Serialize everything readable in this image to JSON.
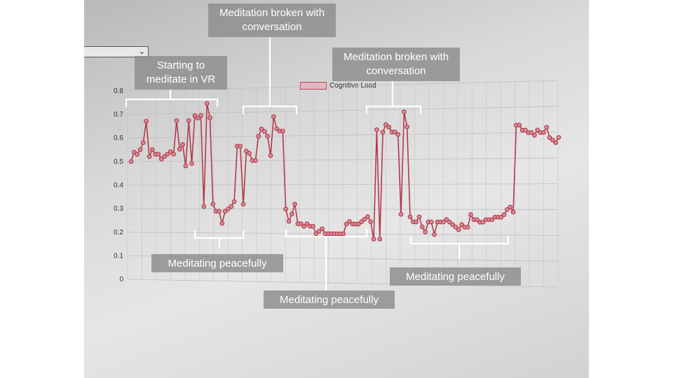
{
  "annotations": {
    "start": "Starting to meditate in VR",
    "broken1": "Meditation broken with conversation",
    "broken2": "Meditation broken with conversation",
    "peace1": "Meditating peacefully",
    "peace2": "Meditating peacefully",
    "peace3": "Meditating peacefully"
  },
  "colors": {
    "series": "#b23a4e",
    "marker_fill": "#d98a96",
    "grid": "#bfbfbf"
  },
  "chart_data": {
    "type": "line",
    "title": "",
    "xlabel": "",
    "ylabel": "",
    "ylim": [
      0,
      0.8
    ],
    "yticks": [
      "0",
      "0.1",
      "0.2",
      "0.3",
      "0.4",
      "0.5",
      "0.6",
      "0.7",
      "0.8"
    ],
    "grid": true,
    "legend": "top-center",
    "series": [
      {
        "name": "Cognitive Load",
        "values": [
          0.5,
          0.54,
          0.53,
          0.55,
          0.58,
          0.67,
          0.52,
          0.55,
          0.53,
          0.53,
          0.51,
          0.52,
          0.53,
          0.54,
          0.53,
          0.67,
          0.55,
          0.57,
          0.48,
          0.67,
          0.49,
          0.69,
          0.68,
          0.69,
          0.31,
          0.74,
          0.68,
          0.32,
          0.29,
          0.29,
          0.24,
          0.29,
          0.3,
          0.31,
          0.33,
          0.56,
          0.56,
          0.32,
          0.54,
          0.53,
          0.5,
          0.5,
          0.6,
          0.63,
          0.62,
          0.6,
          0.52,
          0.68,
          0.63,
          0.62,
          0.62,
          0.3,
          0.25,
          0.28,
          0.32,
          0.24,
          0.24,
          0.23,
          0.24,
          0.23,
          0.23,
          0.2,
          0.21,
          0.22,
          0.2,
          0.2,
          0.2,
          0.2,
          0.2,
          0.2,
          0.2,
          0.24,
          0.25,
          0.24,
          0.24,
          0.24,
          0.25,
          0.26,
          0.27,
          0.25,
          0.18,
          0.62,
          0.18,
          0.61,
          0.64,
          0.63,
          0.61,
          0.61,
          0.6,
          0.28,
          0.69,
          0.63,
          0.27,
          0.25,
          0.25,
          0.27,
          0.23,
          0.21,
          0.25,
          0.25,
          0.2,
          0.25,
          0.25,
          0.25,
          0.26,
          0.25,
          0.24,
          0.23,
          0.22,
          0.24,
          0.23,
          0.23,
          0.28,
          0.26,
          0.26,
          0.25,
          0.25,
          0.26,
          0.26,
          0.26,
          0.27,
          0.27,
          0.27,
          0.28,
          0.3,
          0.31,
          0.29,
          0.63,
          0.63,
          0.61,
          0.61,
          0.6,
          0.6,
          0.59,
          0.61,
          0.6,
          0.6,
          0.62,
          0.58,
          0.57,
          0.56,
          0.58
        ]
      }
    ]
  }
}
